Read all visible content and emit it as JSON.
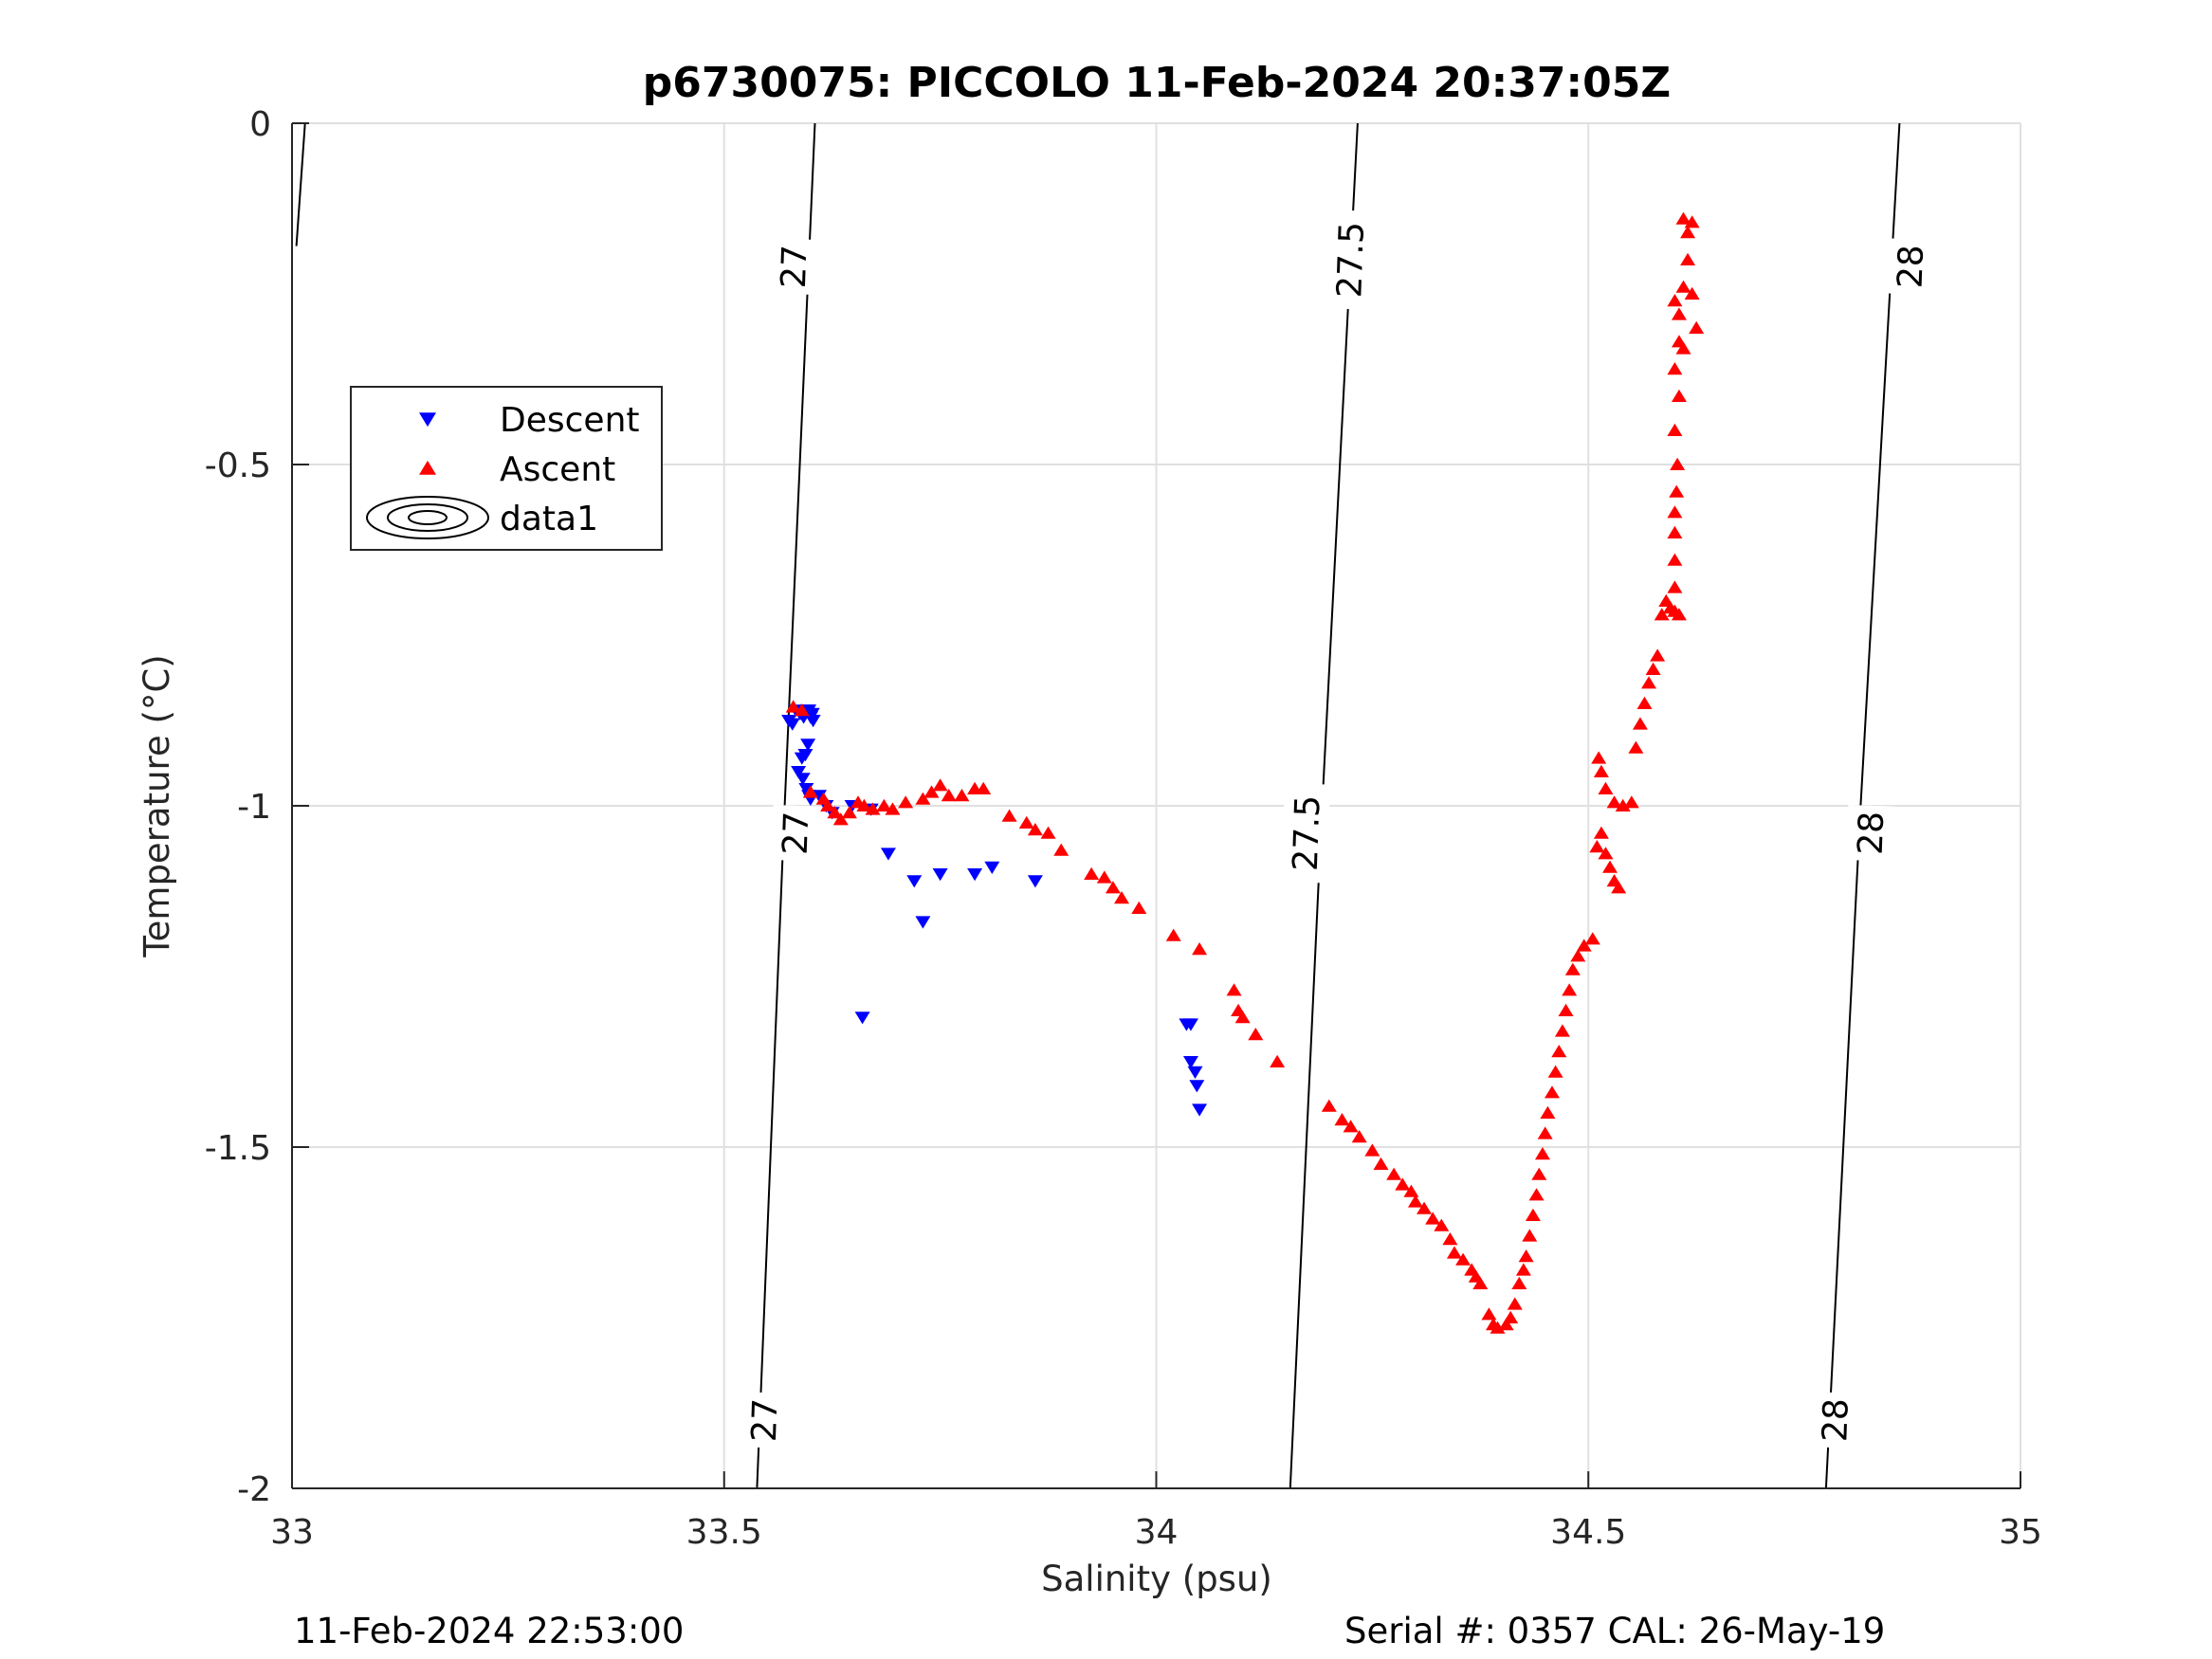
{
  "chart_data": {
    "type": "scatter",
    "title": "p6730075: PICCOLO 11-Feb-2024 20:37:05Z",
    "xlabel": "Salinity (psu)",
    "ylabel": "Temperature (°C)",
    "xlim": [
      33,
      35
    ],
    "ylim": [
      -2,
      0
    ],
    "xticks": [
      33,
      33.5,
      34,
      34.5,
      35
    ],
    "xtick_labels": [
      "33",
      "33.5",
      "34",
      "34.5",
      "35"
    ],
    "yticks": [
      0,
      -0.5,
      -1,
      -1.5,
      -2
    ],
    "ytick_labels": [
      "0",
      "-0.5",
      "-1",
      "-1.5",
      "-2"
    ],
    "grid": true,
    "legend_position": "upper-left",
    "legend": [
      "Descent",
      "Ascent",
      "data1"
    ],
    "footer_left": "11-Feb-2024 22:53:00",
    "footer_right": "Serial #: 0357  CAL: 26-May-19",
    "colors": {
      "descent": "#0000ff",
      "ascent": "#ff0000",
      "contour": "#000000",
      "grid": "#e0e0e0",
      "axis": "#262626"
    },
    "contours": [
      {
        "label": "27",
        "line": [
          [
            33.005,
            -0.18
          ],
          [
            33.015,
            0
          ]
        ],
        "labels_at": []
      },
      {
        "label": "27",
        "line": [
          [
            33.538,
            -2
          ],
          [
            33.57,
            -1.0
          ],
          [
            33.605,
            0
          ]
        ],
        "labels_at": [
          [
            33.546,
            -1.9
          ],
          [
            33.58,
            -0.21
          ],
          [
            33.582,
            -1.04
          ]
        ]
      },
      {
        "label": "27.5",
        "line": [
          [
            34.155,
            -2
          ],
          [
            34.192,
            -1.0
          ],
          [
            34.233,
            0
          ]
        ],
        "labels_at": [
          [
            34.173,
            -1.04
          ],
          [
            34.224,
            -0.2
          ]
        ]
      },
      {
        "label": "28",
        "line": [
          [
            34.775,
            -2
          ],
          [
            34.815,
            -1.0
          ],
          [
            34.86,
            0
          ]
        ],
        "labels_at": [
          [
            34.785,
            -1.9
          ],
          [
            34.826,
            -1.04
          ],
          [
            34.872,
            -0.21
          ]
        ]
      }
    ],
    "series": [
      {
        "name": "Descent",
        "marker": "triangle-down",
        "points": [
          [
            33.575,
            -0.875
          ],
          [
            33.579,
            -0.88
          ],
          [
            33.583,
            -0.86
          ],
          [
            33.588,
            -0.865
          ],
          [
            33.592,
            -0.87
          ],
          [
            33.596,
            -0.86
          ],
          [
            33.6,
            -0.87
          ],
          [
            33.603,
            -0.875
          ],
          [
            33.598,
            -0.86
          ],
          [
            33.602,
            -0.865
          ],
          [
            33.597,
            -0.91
          ],
          [
            33.594,
            -0.925
          ],
          [
            33.59,
            -0.93
          ],
          [
            33.586,
            -0.95
          ],
          [
            33.591,
            -0.96
          ],
          [
            33.595,
            -0.975
          ],
          [
            33.598,
            -0.985
          ],
          [
            33.6,
            -0.99
          ],
          [
            33.61,
            -0.985
          ],
          [
            33.618,
            -1.0
          ],
          [
            33.625,
            -1.01
          ],
          [
            33.648,
            -1.0
          ],
          [
            33.67,
            -1.005
          ],
          [
            33.69,
            -1.07
          ],
          [
            33.72,
            -1.11
          ],
          [
            33.75,
            -1.1
          ],
          [
            33.79,
            -1.1
          ],
          [
            33.81,
            -1.09
          ],
          [
            33.86,
            -1.11
          ],
          [
            33.73,
            -1.17
          ],
          [
            33.66,
            -1.31
          ],
          [
            34.035,
            -1.32
          ],
          [
            34.04,
            -1.32
          ],
          [
            34.04,
            -1.375
          ],
          [
            34.045,
            -1.39
          ],
          [
            34.047,
            -1.41
          ],
          [
            34.05,
            -1.445
          ]
        ]
      },
      {
        "name": "Ascent",
        "marker": "triangle-up",
        "points": [
          [
            33.58,
            -0.855
          ],
          [
            33.59,
            -0.86
          ],
          [
            33.6,
            -0.98
          ],
          [
            33.615,
            -0.99
          ],
          [
            33.62,
            -1.0
          ],
          [
            33.628,
            -1.01
          ],
          [
            33.635,
            -1.02
          ],
          [
            33.645,
            -1.01
          ],
          [
            33.655,
            -0.995
          ],
          [
            33.662,
            -1.0
          ],
          [
            33.672,
            -1.005
          ],
          [
            33.685,
            -1.0
          ],
          [
            33.695,
            -1.005
          ],
          [
            33.71,
            -0.995
          ],
          [
            33.73,
            -0.99
          ],
          [
            33.74,
            -0.98
          ],
          [
            33.75,
            -0.97
          ],
          [
            33.76,
            -0.985
          ],
          [
            33.775,
            -0.985
          ],
          [
            33.79,
            -0.975
          ],
          [
            33.8,
            -0.975
          ],
          [
            33.83,
            -1.015
          ],
          [
            33.85,
            -1.025
          ],
          [
            33.86,
            -1.035
          ],
          [
            33.875,
            -1.04
          ],
          [
            33.89,
            -1.065
          ],
          [
            33.925,
            -1.1
          ],
          [
            33.94,
            -1.105
          ],
          [
            33.95,
            -1.12
          ],
          [
            33.96,
            -1.135
          ],
          [
            33.98,
            -1.15
          ],
          [
            34.02,
            -1.19
          ],
          [
            34.05,
            -1.21
          ],
          [
            34.09,
            -1.27
          ],
          [
            34.095,
            -1.3
          ],
          [
            34.1,
            -1.31
          ],
          [
            34.115,
            -1.335
          ],
          [
            34.14,
            -1.375
          ],
          [
            34.2,
            -1.44
          ],
          [
            34.215,
            -1.46
          ],
          [
            34.225,
            -1.47
          ],
          [
            34.235,
            -1.485
          ],
          [
            34.25,
            -1.505
          ],
          [
            34.26,
            -1.525
          ],
          [
            34.275,
            -1.54
          ],
          [
            34.285,
            -1.555
          ],
          [
            34.295,
            -1.565
          ],
          [
            34.3,
            -1.58
          ],
          [
            34.31,
            -1.59
          ],
          [
            34.32,
            -1.605
          ],
          [
            34.33,
            -1.615
          ],
          [
            34.34,
            -1.635
          ],
          [
            34.345,
            -1.655
          ],
          [
            34.355,
            -1.665
          ],
          [
            34.365,
            -1.68
          ],
          [
            34.37,
            -1.69
          ],
          [
            34.375,
            -1.7
          ],
          [
            34.385,
            -1.745
          ],
          [
            34.39,
            -1.76
          ],
          [
            34.395,
            -1.765
          ],
          [
            34.405,
            -1.76
          ],
          [
            34.41,
            -1.75
          ],
          [
            34.415,
            -1.73
          ],
          [
            34.42,
            -1.7
          ],
          [
            34.425,
            -1.68
          ],
          [
            34.428,
            -1.66
          ],
          [
            34.432,
            -1.63
          ],
          [
            34.436,
            -1.6
          ],
          [
            34.44,
            -1.57
          ],
          [
            34.443,
            -1.54
          ],
          [
            34.447,
            -1.51
          ],
          [
            34.45,
            -1.48
          ],
          [
            34.453,
            -1.45
          ],
          [
            34.458,
            -1.42
          ],
          [
            34.462,
            -1.39
          ],
          [
            34.466,
            -1.36
          ],
          [
            34.47,
            -1.33
          ],
          [
            34.474,
            -1.3
          ],
          [
            34.478,
            -1.27
          ],
          [
            34.482,
            -1.24
          ],
          [
            34.488,
            -1.22
          ],
          [
            34.495,
            -1.205
          ],
          [
            34.505,
            -1.195
          ],
          [
            34.51,
            -1.06
          ],
          [
            34.515,
            -1.04
          ],
          [
            34.52,
            -1.07
          ],
          [
            34.525,
            -1.09
          ],
          [
            34.53,
            -1.11
          ],
          [
            34.535,
            -1.12
          ],
          [
            34.512,
            -0.93
          ],
          [
            34.515,
            -0.95
          ],
          [
            34.52,
            -0.975
          ],
          [
            34.53,
            -0.995
          ],
          [
            34.54,
            -1.0
          ],
          [
            34.55,
            -0.995
          ],
          [
            34.555,
            -0.915
          ],
          [
            34.56,
            -0.88
          ],
          [
            34.565,
            -0.85
          ],
          [
            34.57,
            -0.82
          ],
          [
            34.575,
            -0.8
          ],
          [
            34.58,
            -0.78
          ],
          [
            34.585,
            -0.72
          ],
          [
            34.59,
            -0.7
          ],
          [
            34.595,
            -0.71
          ],
          [
            34.6,
            -0.715
          ],
          [
            34.605,
            -0.72
          ],
          [
            34.6,
            -0.68
          ],
          [
            34.6,
            -0.64
          ],
          [
            34.6,
            -0.6
          ],
          [
            34.6,
            -0.57
          ],
          [
            34.602,
            -0.54
          ],
          [
            34.603,
            -0.5
          ],
          [
            34.6,
            -0.45
          ],
          [
            34.605,
            -0.4
          ],
          [
            34.6,
            -0.36
          ],
          [
            34.605,
            -0.32
          ],
          [
            34.605,
            -0.28
          ],
          [
            34.61,
            -0.24
          ],
          [
            34.615,
            -0.2
          ],
          [
            34.615,
            -0.16
          ],
          [
            34.61,
            -0.14
          ],
          [
            34.62,
            -0.145
          ],
          [
            34.625,
            -0.3
          ],
          [
            34.62,
            -0.25
          ],
          [
            34.61,
            -0.33
          ],
          [
            34.6,
            -0.26
          ]
        ]
      }
    ]
  }
}
